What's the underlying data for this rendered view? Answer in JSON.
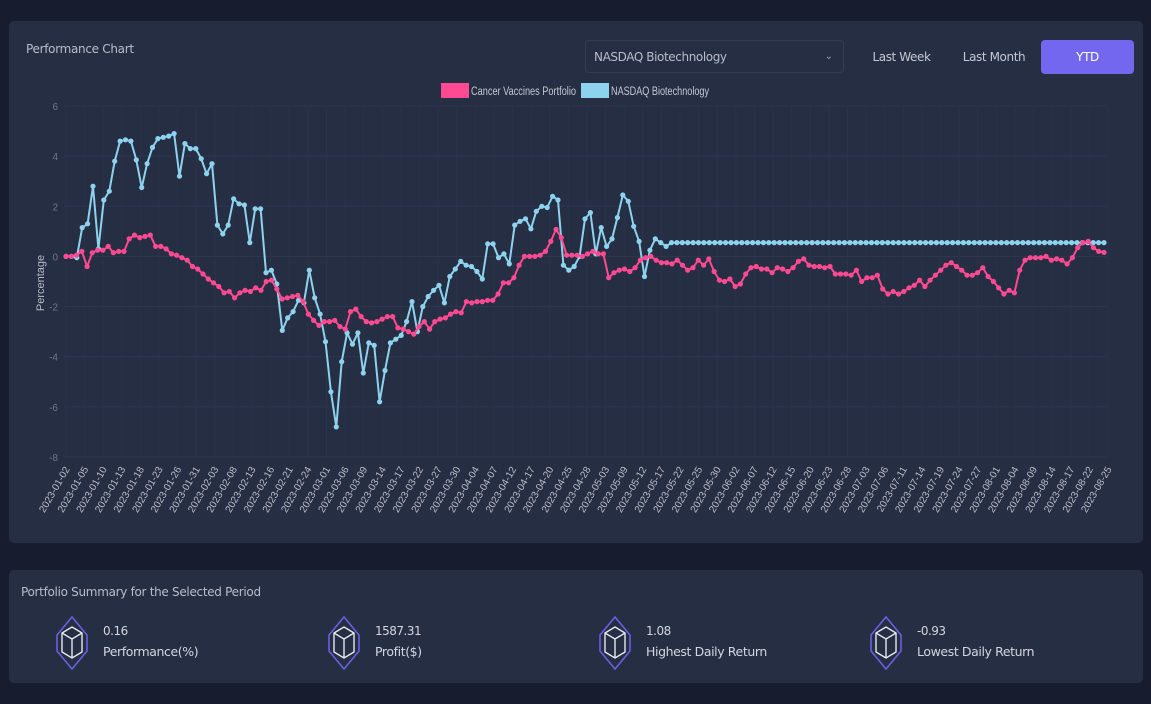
{
  "chart_panel": {
    "title": "Performance Chart",
    "benchmark_select": {
      "value": "NASDAQ Biotechnology",
      "chevron_icon": "chevron-down-icon"
    },
    "period_buttons": [
      {
        "label": "Last Week",
        "active": false
      },
      {
        "label": "Last Month",
        "active": false
      },
      {
        "label": "YTD",
        "active": true
      }
    ]
  },
  "chart_data": {
    "type": "line",
    "title": "",
    "xlabel": "",
    "ylabel": "Percentage",
    "ylim": [
      -8,
      6
    ],
    "yticks": [
      "6",
      "4",
      "2",
      "0",
      "-2",
      "-4",
      "-6",
      "-8"
    ],
    "ytick_values": [
      6,
      4,
      2,
      0,
      -2,
      -4,
      -6,
      -8
    ],
    "grid": true,
    "legend_position": "top-center",
    "xtick_labels": [
      "2023-01-02",
      "2023-01-05",
      "2023-01-10",
      "2023-01-13",
      "2023-01-18",
      "2023-01-23",
      "2023-01-26",
      "2023-01-31",
      "2023-02-03",
      "2023-02-08",
      "2023-02-13",
      "2023-02-16",
      "2023-02-21",
      "2023-02-24",
      "2023-03-01",
      "2023-03-06",
      "2023-03-09",
      "2023-03-14",
      "2023-03-17",
      "2023-03-22",
      "2023-03-27",
      "2023-03-30",
      "2023-04-04",
      "2023-04-07",
      "2023-04-12",
      "2023-04-17",
      "2023-04-20",
      "2023-04-25",
      "2023-04-28",
      "2023-05-03",
      "2023-05-09",
      "2023-05-12",
      "2023-05-17",
      "2023-05-22",
      "2023-05-25",
      "2023-05-30",
      "2023-06-02",
      "2023-06-07",
      "2023-06-12",
      "2023-06-15",
      "2023-06-20",
      "2023-06-23",
      "2023-06-28",
      "2023-07-03",
      "2023-07-06",
      "2023-07-11",
      "2023-07-14",
      "2023-07-19",
      "2023-07-24",
      "2023-07-27",
      "2023-08-01",
      "2023-08-04",
      "2023-08-09",
      "2023-08-14",
      "2023-08-17",
      "2023-08-22",
      "2023-08-25"
    ],
    "series": [
      {
        "name": "Cancer Vaccines Portfolio",
        "color": "#ff4a91",
        "values": [
          0,
          0,
          0.05,
          0.2,
          -0.4,
          0.15,
          0.25,
          0.25,
          0.4,
          0.15,
          0.2,
          0.2,
          0.7,
          0.85,
          0.75,
          0.8,
          0.85,
          0.4,
          0.4,
          0.3,
          0.1,
          0.05,
          -0.05,
          -0.15,
          -0.4,
          -0.5,
          -0.7,
          -0.9,
          -1.05,
          -1.2,
          -1.45,
          -1.4,
          -1.65,
          -1.45,
          -1.35,
          -1.4,
          -1.25,
          -1.35,
          -1.0,
          -0.95,
          -1.3,
          -1.7,
          -1.65,
          -1.6,
          -1.55,
          -1.8,
          -2.3,
          -2.55,
          -2.75,
          -2.6,
          -2.6,
          -2.55,
          -2.8,
          -2.9,
          -2.2,
          -2.1,
          -2.4,
          -2.6,
          -2.65,
          -2.6,
          -2.5,
          -2.4,
          -2.4,
          -2.85,
          -2.9,
          -3.0,
          -3.1,
          -2.8,
          -2.6,
          -2.9,
          -2.6,
          -2.5,
          -2.45,
          -2.3,
          -2.2,
          -2.25,
          -1.8,
          -1.85,
          -1.8,
          -1.8,
          -1.75,
          -1.75,
          -1.5,
          -1.05,
          -1.05,
          -0.85,
          -0.35,
          0,
          0,
          0,
          0.05,
          0.2,
          0.6,
          1.08,
          0.75,
          0.05,
          0.05,
          0.05,
          0,
          0.1,
          0.2,
          0.1,
          0.1,
          -0.85,
          -0.65,
          -0.55,
          -0.5,
          -0.6,
          -0.45,
          -0.15,
          -0.05,
          0,
          -0.15,
          -0.25,
          -0.25,
          -0.3,
          -0.15,
          -0.35,
          -0.55,
          -0.45,
          -0.15,
          -0.35,
          -0.1,
          -0.6,
          -0.95,
          -1.0,
          -0.9,
          -1.2,
          -1.1,
          -0.7,
          -0.45,
          -0.4,
          -0.5,
          -0.5,
          -0.65,
          -0.45,
          -0.5,
          -0.6,
          -0.45,
          -0.2,
          -0.1,
          -0.35,
          -0.4,
          -0.4,
          -0.45,
          -0.4,
          -0.7,
          -0.7,
          -0.7,
          -0.75,
          -0.55,
          -1.0,
          -0.85,
          -0.85,
          -0.75,
          -1.3,
          -1.5,
          -1.4,
          -1.5,
          -1.4,
          -1.25,
          -1.15,
          -0.95,
          -1.2,
          -0.95,
          -0.75,
          -0.55,
          -0.35,
          -0.25,
          -0.4,
          -0.55,
          -0.75,
          -0.75,
          -0.65,
          -0.45,
          -0.8,
          -1.0,
          -1.25,
          -1.5,
          -1.35,
          -1.45,
          -0.55,
          -0.15,
          -0.05,
          -0.05,
          -0.05,
          0,
          -0.15,
          -0.1,
          -0.15,
          -0.3,
          -0.05,
          0.35,
          0.55,
          0.6,
          0.35,
          0.2,
          0.16
        ]
      },
      {
        "name": "NASDAQ Biotechnology",
        "color": "#8dd3ee",
        "values": [
          0,
          0,
          -0.05,
          1.15,
          1.3,
          2.8,
          0.3,
          2.25,
          2.6,
          3.8,
          4.6,
          4.65,
          4.6,
          3.85,
          2.75,
          3.7,
          4.35,
          4.7,
          4.75,
          4.8,
          4.9,
          3.2,
          4.5,
          4.3,
          4.3,
          3.9,
          3.3,
          3.7,
          1.25,
          0.9,
          1.25,
          2.3,
          2.1,
          2.05,
          0.55,
          1.9,
          1.9,
          -0.65,
          -0.55,
          -1.1,
          -2.95,
          -2.45,
          -2.2,
          -1.75,
          -1.85,
          -0.55,
          -1.65,
          -2.3,
          -3.4,
          -5.4,
          -6.8,
          -4.2,
          -3.05,
          -3.5,
          -3.05,
          -4.65,
          -3.45,
          -3.55,
          -5.8,
          -4.55,
          -3.45,
          -3.3,
          -3.15,
          -2.6,
          -1.8,
          -3.0,
          -2.0,
          -1.6,
          -1.35,
          -1.15,
          -1.85,
          -0.8,
          -0.5,
          -0.2,
          -0.35,
          -0.4,
          -0.6,
          -0.9,
          0.5,
          0.5,
          -0.05,
          0.1,
          -0.3,
          1.25,
          1.4,
          1.5,
          1.1,
          1.8,
          2.0,
          1.95,
          2.4,
          2.25,
          -0.35,
          -0.55,
          -0.4,
          0.0,
          1.5,
          1.75,
          0.1,
          1.15,
          0.4,
          0.7,
          1.55,
          2.45,
          2.2,
          1.2,
          0.6,
          -0.8,
          0.25,
          0.7,
          0.55,
          0.4,
          0.55,
          0.55,
          0.55,
          0.55,
          0.55,
          0.55,
          0.55,
          0.55,
          0.55,
          0.55,
          0.55,
          0.55,
          0.55,
          0.55,
          0.55,
          0.55,
          0.55,
          0.55,
          0.55,
          0.55,
          0.55,
          0.55,
          0.55,
          0.55,
          0.55,
          0.55,
          0.55,
          0.55,
          0.55,
          0.55,
          0.55,
          0.55,
          0.55,
          0.55,
          0.55,
          0.55,
          0.55,
          0.55,
          0.55,
          0.55,
          0.55,
          0.55,
          0.55,
          0.55,
          0.55,
          0.55,
          0.55,
          0.55,
          0.55,
          0.55,
          0.55,
          0.55,
          0.55,
          0.55,
          0.55,
          0.55,
          0.55,
          0.55,
          0.55,
          0.55,
          0.55,
          0.55,
          0.55,
          0.55,
          0.55,
          0.55,
          0.55,
          0.55,
          0.55,
          0.55,
          0.55,
          0.55,
          0.55,
          0.55,
          0.55,
          0.55,
          0.55,
          0.55,
          0.55,
          0.55,
          0.55
        ]
      }
    ]
  },
  "summary": {
    "title": "Portfolio Summary for the Selected Period",
    "icon": "cube-hexagon-icon",
    "metrics": [
      {
        "value": "0.16",
        "label": "Performance(%)"
      },
      {
        "value": "1587.31",
        "label": "Profit($)"
      },
      {
        "value": "1.08",
        "label": "Highest Daily Return"
      },
      {
        "value": "-0.93",
        "label": "Lowest Daily Return"
      }
    ]
  }
}
